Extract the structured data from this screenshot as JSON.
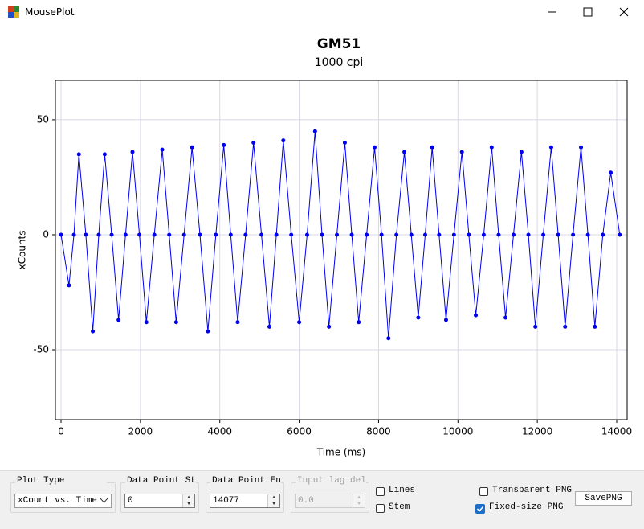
{
  "window": {
    "title": "MousePlot"
  },
  "chart_data": {
    "type": "line",
    "title": "GM51",
    "subtitle": "1000 cpi",
    "x_label": "Time (ms)",
    "y_label": "xCounts",
    "x": [
      0,
      200,
      325,
      450,
      625,
      800,
      950,
      1100,
      1275,
      1450,
      1625,
      1800,
      1975,
      2150,
      2350,
      2550,
      2725,
      2900,
      3100,
      3300,
      3500,
      3700,
      3900,
      4100,
      4275,
      4450,
      4650,
      4850,
      5050,
      5250,
      5425,
      5600,
      5800,
      6000,
      6200,
      6400,
      6575,
      6750,
      6950,
      7150,
      7325,
      7500,
      7700,
      7900,
      8075,
      8250,
      8450,
      8650,
      8825,
      9000,
      9175,
      9350,
      9525,
      9700,
      9900,
      10100,
      10275,
      10450,
      10650,
      10850,
      11025,
      11200,
      11400,
      11600,
      11775,
      11950,
      12150,
      12350,
      12525,
      12700,
      12900,
      13100,
      13275,
      13450,
      13650,
      13850,
      14077
    ],
    "values": [
      0,
      -22,
      0,
      35,
      0,
      -42,
      0,
      35,
      0,
      -37,
      0,
      36,
      0,
      -38,
      0,
      37,
      0,
      -38,
      0,
      38,
      0,
      -42,
      0,
      39,
      0,
      -38,
      0,
      40,
      0,
      -40,
      0,
      41,
      0,
      -38,
      0,
      45,
      0,
      -40,
      0,
      40,
      0,
      -38,
      0,
      38,
      0,
      -45,
      0,
      36,
      0,
      -36,
      0,
      38,
      0,
      -37,
      0,
      36,
      0,
      -35,
      0,
      38,
      0,
      -36,
      0,
      36,
      0,
      -40,
      0,
      38,
      0,
      -40,
      0,
      38,
      0,
      -40,
      0,
      27,
      0
    ],
    "color": "#0000ee",
    "markers": true,
    "xlim": [
      -142,
      14263
    ],
    "xticks": [
      0,
      2000,
      4000,
      6000,
      8000,
      10000,
      12000,
      14000
    ],
    "ylim": [
      -80.4,
      67.1
    ],
    "yticks": [
      -50,
      0,
      50
    ],
    "grid": true
  },
  "controls": {
    "plot_type": {
      "label": "Plot Type",
      "value": "xCount vs. Time"
    },
    "start": {
      "label": "Data Point Start",
      "value": "0"
    },
    "end": {
      "label": "Data Point End",
      "value": "14077"
    },
    "lag": {
      "label": "Input lag delay",
      "value": "0.0"
    },
    "lines": "Lines",
    "stem": "Stem",
    "transparent": "Transparent PNG",
    "fixed": "Fixed-size PNG",
    "save": "SavePNG"
  }
}
